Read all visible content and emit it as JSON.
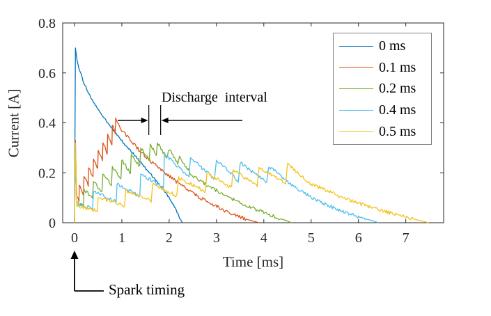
{
  "figure": {
    "background": "#ffffff",
    "axis_color": "#262626",
    "text_color": "#000000",
    "legend_border_color": "#7f7f7f"
  },
  "chart_data": {
    "type": "line",
    "title": "",
    "xlabel": "Time [ms]",
    "ylabel": "Current [A]",
    "xlim": [
      -0.25,
      7.8
    ],
    "ylim": [
      0,
      0.8
    ],
    "xticks": [
      0,
      1,
      2,
      3,
      4,
      5,
      6,
      7
    ],
    "xtick_labels": [
      "0",
      "1",
      "2",
      "3",
      "4",
      "5",
      "6",
      "7"
    ],
    "yticks": [
      0,
      0.2,
      0.4,
      0.6,
      0.8
    ],
    "ytick_labels": [
      "0",
      "0.2",
      "0.4",
      "0.6",
      "0.8"
    ],
    "grid": false,
    "legend_position": "top-right",
    "series": [
      {
        "name": "0 ms",
        "color": "#0072BD",
        "noise": 0.004,
        "points": [
          [
            0,
            0
          ],
          [
            0.02,
            0.7
          ],
          [
            0.05,
            0.655
          ],
          [
            0.1,
            0.615
          ],
          [
            0.18,
            0.57
          ],
          [
            0.28,
            0.525
          ],
          [
            0.38,
            0.49
          ],
          [
            0.48,
            0.46
          ],
          [
            0.58,
            0.43
          ],
          [
            0.7,
            0.4
          ],
          [
            0.82,
            0.37
          ],
          [
            0.95,
            0.34
          ],
          [
            1.08,
            0.31
          ],
          [
            1.2,
            0.285
          ],
          [
            1.32,
            0.26
          ],
          [
            1.45,
            0.23
          ],
          [
            1.58,
            0.2
          ],
          [
            1.7,
            0.175
          ],
          [
            1.82,
            0.145
          ],
          [
            1.95,
            0.115
          ],
          [
            2.05,
            0.085
          ],
          [
            2.15,
            0.05
          ],
          [
            2.22,
            0.02
          ],
          [
            2.28,
            0
          ]
        ]
      },
      {
        "name": "0.1 ms",
        "color": "#D95319",
        "noise": 0.007,
        "points": [
          [
            0,
            0
          ],
          [
            0.02,
            0.33
          ],
          [
            0.045,
            0.11
          ],
          [
            0.095,
            0.085
          ],
          [
            0.1,
            0.15
          ],
          [
            0.19,
            0.115
          ],
          [
            0.2,
            0.185
          ],
          [
            0.29,
            0.15
          ],
          [
            0.3,
            0.22
          ],
          [
            0.39,
            0.18
          ],
          [
            0.4,
            0.255
          ],
          [
            0.49,
            0.215
          ],
          [
            0.5,
            0.29
          ],
          [
            0.59,
            0.25
          ],
          [
            0.6,
            0.32
          ],
          [
            0.69,
            0.28
          ],
          [
            0.7,
            0.355
          ],
          [
            0.79,
            0.315
          ],
          [
            0.8,
            0.39
          ],
          [
            0.86,
            0.36
          ],
          [
            0.87,
            0.42
          ],
          [
            0.95,
            0.385
          ],
          [
            1.05,
            0.36
          ],
          [
            1.18,
            0.33
          ],
          [
            1.32,
            0.3
          ],
          [
            1.48,
            0.27
          ],
          [
            1.65,
            0.24
          ],
          [
            1.85,
            0.21
          ],
          [
            2.05,
            0.18
          ],
          [
            2.25,
            0.15
          ],
          [
            2.45,
            0.125
          ],
          [
            2.65,
            0.1
          ],
          [
            2.85,
            0.08
          ],
          [
            3.05,
            0.06
          ],
          [
            3.25,
            0.042
          ],
          [
            3.45,
            0.027
          ],
          [
            3.65,
            0.013
          ],
          [
            3.82,
            0.004
          ],
          [
            3.9,
            0
          ]
        ]
      },
      {
        "name": "0.2 ms",
        "color": "#77AC30",
        "noise": 0.007,
        "points": [
          [
            0,
            0
          ],
          [
            0.02,
            0.26
          ],
          [
            0.05,
            0.085
          ],
          [
            0.19,
            0.065
          ],
          [
            0.2,
            0.135
          ],
          [
            0.38,
            0.095
          ],
          [
            0.4,
            0.165
          ],
          [
            0.58,
            0.12
          ],
          [
            0.6,
            0.195
          ],
          [
            0.78,
            0.15
          ],
          [
            0.8,
            0.225
          ],
          [
            0.98,
            0.175
          ],
          [
            1.0,
            0.25
          ],
          [
            1.18,
            0.2
          ],
          [
            1.2,
            0.275
          ],
          [
            1.38,
            0.225
          ],
          [
            1.4,
            0.3
          ],
          [
            1.58,
            0.25
          ],
          [
            1.6,
            0.315
          ],
          [
            1.73,
            0.27
          ],
          [
            1.75,
            0.32
          ],
          [
            1.95,
            0.26
          ],
          [
            2.0,
            0.295
          ],
          [
            2.18,
            0.235
          ],
          [
            2.22,
            0.26
          ],
          [
            2.42,
            0.205
          ],
          [
            2.5,
            0.19
          ],
          [
            2.7,
            0.163
          ],
          [
            2.9,
            0.14
          ],
          [
            3.1,
            0.118
          ],
          [
            3.3,
            0.098
          ],
          [
            3.5,
            0.08
          ],
          [
            3.7,
            0.064
          ],
          [
            3.9,
            0.048
          ],
          [
            4.1,
            0.034
          ],
          [
            4.3,
            0.02
          ],
          [
            4.5,
            0.007
          ],
          [
            4.58,
            0
          ]
        ]
      },
      {
        "name": "0.4 ms",
        "color": "#4DBEEE",
        "noise": 0.007,
        "points": [
          [
            0,
            0
          ],
          [
            0.02,
            0.29
          ],
          [
            0.05,
            0.075
          ],
          [
            0.38,
            0.058
          ],
          [
            0.4,
            0.125
          ],
          [
            0.88,
            0.085
          ],
          [
            0.9,
            0.155
          ],
          [
            1.38,
            0.105
          ],
          [
            1.4,
            0.195
          ],
          [
            1.88,
            0.14
          ],
          [
            1.9,
            0.275
          ],
          [
            2.42,
            0.185
          ],
          [
            2.45,
            0.26
          ],
          [
            2.96,
            0.175
          ],
          [
            3.0,
            0.25
          ],
          [
            3.46,
            0.168
          ],
          [
            3.5,
            0.24
          ],
          [
            4.06,
            0.16
          ],
          [
            4.1,
            0.225
          ],
          [
            4.35,
            0.19
          ],
          [
            4.6,
            0.15
          ],
          [
            4.85,
            0.12
          ],
          [
            5.1,
            0.092
          ],
          [
            5.35,
            0.07
          ],
          [
            5.6,
            0.05
          ],
          [
            5.85,
            0.033
          ],
          [
            6.1,
            0.018
          ],
          [
            6.3,
            0.008
          ],
          [
            6.42,
            0
          ]
        ]
      },
      {
        "name": "0.5 ms",
        "color": "#F5C21B",
        "noise": 0.007,
        "points": [
          [
            0,
            0
          ],
          [
            0.02,
            0.32
          ],
          [
            0.05,
            0.065
          ],
          [
            0.48,
            0.05
          ],
          [
            0.5,
            0.1
          ],
          [
            1.06,
            0.068
          ],
          [
            1.08,
            0.13
          ],
          [
            1.62,
            0.088
          ],
          [
            1.65,
            0.155
          ],
          [
            2.16,
            0.108
          ],
          [
            2.2,
            0.18
          ],
          [
            2.76,
            0.125
          ],
          [
            2.8,
            0.2
          ],
          [
            3.32,
            0.14
          ],
          [
            3.35,
            0.212
          ],
          [
            3.86,
            0.15
          ],
          [
            3.9,
            0.222
          ],
          [
            4.46,
            0.158
          ],
          [
            4.5,
            0.235
          ],
          [
            4.75,
            0.195
          ],
          [
            5.0,
            0.155
          ],
          [
            5.25,
            0.135
          ],
          [
            5.5,
            0.115
          ],
          [
            5.75,
            0.095
          ],
          [
            6.0,
            0.078
          ],
          [
            6.25,
            0.062
          ],
          [
            6.5,
            0.048
          ],
          [
            6.75,
            0.035
          ],
          [
            7.0,
            0.023
          ],
          [
            7.2,
            0.013
          ],
          [
            7.38,
            0.005
          ],
          [
            7.48,
            0
          ]
        ]
      }
    ]
  },
  "annotations": {
    "discharge_interval": {
      "text": "Discharge interval",
      "t_start": 1.57,
      "t_end": 1.82
    },
    "spark_timing": {
      "text": "Spark timing",
      "t": 0
    }
  }
}
